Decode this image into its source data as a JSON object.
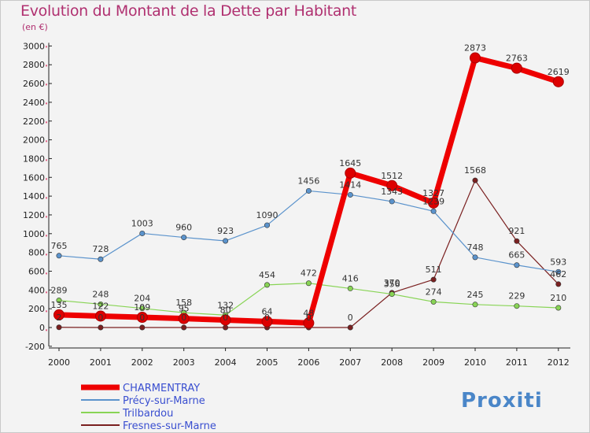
{
  "title": "Evolution du Montant de la Dette par Habitant",
  "subtitle": "(en €)",
  "logo": {
    "text": "Proxiti"
  },
  "chart_data": {
    "type": "line",
    "x": [
      "2000",
      "2001",
      "2002",
      "2003",
      "2004",
      "2005",
      "2006",
      "2007",
      "2008",
      "2009",
      "2010",
      "2011",
      "2012"
    ],
    "ylim": [
      -200,
      3000
    ],
    "yticks": [
      -200,
      0,
      200,
      400,
      600,
      800,
      1000,
      1200,
      1400,
      1600,
      1800,
      2000,
      2200,
      2400,
      2600,
      2800,
      3000
    ],
    "grid": false,
    "legend": "bottom-left",
    "series": [
      {
        "name": "CHARMENTRAY",
        "color": "#ee0000",
        "values": [
          135,
          122,
          109,
          95,
          80,
          64,
          48,
          1645,
          1512,
          1327,
          2873,
          2763,
          2619
        ]
      },
      {
        "name": "Précy-sur-Marne",
        "color": "#5b93cc",
        "values": [
          765,
          728,
          1003,
          960,
          923,
          1090,
          1456,
          1414,
          1343,
          1239,
          748,
          665,
          593
        ]
      },
      {
        "name": "Trilbardou",
        "color": "#88d455",
        "values": [
          289,
          248,
          204,
          158,
          132,
          454,
          472,
          416,
          356,
          274,
          245,
          229,
          210
        ]
      },
      {
        "name": "Fresnes-sur-Marne",
        "color": "#7a2020",
        "values": [
          2,
          0,
          0,
          0,
          0,
          0,
          0,
          0,
          370,
          511,
          1568,
          921,
          462
        ]
      }
    ]
  }
}
